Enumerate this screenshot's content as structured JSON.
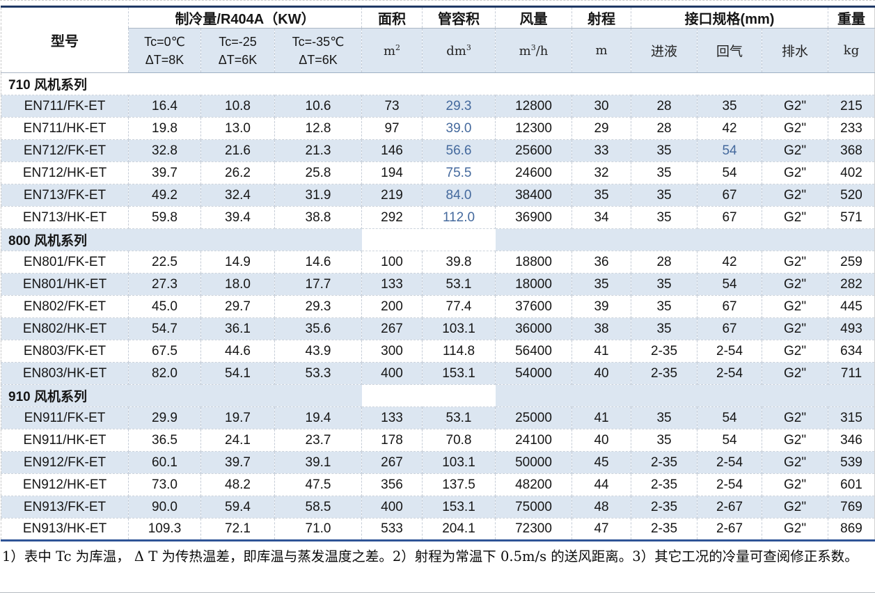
{
  "table": {
    "header": {
      "model": "型号",
      "cooling_group": "制冷量/R404A（KW）",
      "tc_conditions": [
        {
          "line1": "Tc=0℃",
          "line2": "ΔT=8K"
        },
        {
          "line1": "Tc=-25",
          "line2": "ΔT=6K"
        },
        {
          "line1": "Tc=-35℃",
          "line2": "ΔT=6K"
        }
      ],
      "area": "面积",
      "tube_volume": "管容积",
      "air_flow": "风量",
      "throw": "射程",
      "connections": "接口规格(mm)",
      "weight": "重量",
      "conn_liquid": "进液",
      "conn_gas": "回气",
      "conn_drain": "排水",
      "units": {
        "area": {
          "base": "m",
          "sup": "2"
        },
        "tube_volume": {
          "base": "dm",
          "sup": "3"
        },
        "air_flow": {
          "base": "m",
          "sup": "3",
          "suffix": "/h"
        },
        "throw": "m",
        "weight": "kg"
      }
    },
    "values_columns": [
      "制冷量 Tc=0℃ ΔT=8K (KW)",
      "制冷量 Tc=-25 ΔT=6K (KW)",
      "制冷量 Tc=-35℃ ΔT=6K (KW)",
      "面积 m²",
      "管容积 dm³",
      "风量 m³/h",
      "射程 m",
      "进液 (mm)",
      "回气 (mm)",
      "排水",
      "重量 kg"
    ],
    "sections": [
      {
        "title": "710 风机系列",
        "header_shaded": false,
        "white_cols": [],
        "first_row_shaded": true,
        "rows": [
          {
            "model": "EN711/FK-ET",
            "values": [
              "16.4",
              "10.8",
              "10.6",
              "73",
              "29.3",
              "12800",
              "30",
              "28",
              "35",
              "G2\"",
              "215"
            ],
            "blue": [
              4
            ]
          },
          {
            "model": "EN711/HK-ET",
            "values": [
              "19.8",
              "13.0",
              "12.8",
              "97",
              "39.0",
              "12300",
              "29",
              "28",
              "42",
              "G2\"",
              "233"
            ],
            "blue": [
              4
            ]
          },
          {
            "model": "EN712/FK-ET",
            "values": [
              "32.8",
              "21.6",
              "21.3",
              "146",
              "56.6",
              "25600",
              "33",
              "35",
              "54",
              "G2\"",
              "368"
            ],
            "blue": [
              4,
              8
            ]
          },
          {
            "model": "EN712/HK-ET",
            "values": [
              "39.7",
              "26.2",
              "25.8",
              "194",
              "75.5",
              "24600",
              "32",
              "35",
              "54",
              "G2\"",
              "402"
            ],
            "blue": [
              4
            ]
          },
          {
            "model": "EN713/FK-ET",
            "values": [
              "49.2",
              "32.4",
              "31.9",
              "219",
              "84.0",
              "38400",
              "35",
              "35",
              "67",
              "G2\"",
              "520"
            ],
            "blue": [
              4
            ]
          },
          {
            "model": "EN713/HK-ET",
            "values": [
              "59.8",
              "39.4",
              "38.8",
              "292",
              "112.0",
              "36900",
              "34",
              "35",
              "67",
              "G2\"",
              "571"
            ],
            "blue": [
              4
            ]
          }
        ]
      },
      {
        "title": "800 风机系列",
        "header_shaded": true,
        "white_cols": [
          4,
          5
        ],
        "first_row_shaded": false,
        "rows": [
          {
            "model": "EN801/FK-ET",
            "values": [
              "22.5",
              "14.9",
              "14.6",
              "100",
              "39.8",
              "18800",
              "36",
              "28",
              "42",
              "G2\"",
              "259"
            ],
            "blue": []
          },
          {
            "model": "EN801/HK-ET",
            "values": [
              "27.3",
              "18.0",
              "17.7",
              "133",
              "53.1",
              "18000",
              "35",
              "35",
              "54",
              "G2\"",
              "282"
            ],
            "blue": []
          },
          {
            "model": "EN802/FK-ET",
            "values": [
              "45.0",
              "29.7",
              "29.3",
              "200",
              "77.4",
              "37600",
              "39",
              "35",
              "67",
              "G2\"",
              "445"
            ],
            "blue": []
          },
          {
            "model": "EN802/HK-ET",
            "values": [
              "54.7",
              "36.1",
              "35.6",
              "267",
              "103.1",
              "36000",
              "38",
              "35",
              "67",
              "G2\"",
              "493"
            ],
            "blue": []
          },
          {
            "model": "EN803/FK-ET",
            "values": [
              "67.5",
              "44.6",
              "43.9",
              "300",
              "114.8",
              "56400",
              "41",
              "2-35",
              "2-54",
              "G2\"",
              "634"
            ],
            "blue": []
          },
          {
            "model": "EN803/HK-ET",
            "values": [
              "82.0",
              "54.1",
              "53.3",
              "400",
              "153.1",
              "54000",
              "40",
              "2-35",
              "2-54",
              "G2\"",
              "711"
            ],
            "blue": []
          }
        ]
      },
      {
        "title": "910 风机系列",
        "header_shaded": true,
        "white_cols": [
          4,
          5
        ],
        "first_row_shaded": true,
        "rows": [
          {
            "model": "EN911/FK-ET",
            "values": [
              "29.9",
              "19.7",
              "19.4",
              "133",
              "53.1",
              "25000",
              "41",
              "35",
              "54",
              "G2\"",
              "315"
            ],
            "blue": []
          },
          {
            "model": "EN911/HK-ET",
            "values": [
              "36.5",
              "24.1",
              "23.7",
              "178",
              "70.8",
              "24100",
              "40",
              "35",
              "54",
              "G2\"",
              "346"
            ],
            "blue": []
          },
          {
            "model": "EN912/FK-ET",
            "values": [
              "60.1",
              "39.7",
              "39.1",
              "267",
              "103.1",
              "50000",
              "45",
              "2-35",
              "2-54",
              "G2\"",
              "539"
            ],
            "blue": []
          },
          {
            "model": "EN912/HK-ET",
            "values": [
              "73.0",
              "48.2",
              "47.5",
              "356",
              "137.5",
              "48200",
              "44",
              "2-35",
              "2-54",
              "G2\"",
              "601"
            ],
            "blue": []
          },
          {
            "model": "EN913/FK-ET",
            "values": [
              "90.0",
              "59.4",
              "58.5",
              "400",
              "153.1",
              "75000",
              "48",
              "2-35",
              "2-67",
              "G2\"",
              "769"
            ],
            "blue": []
          },
          {
            "model": "EN913/HK-ET",
            "values": [
              "109.3",
              "72.1",
              "71.0",
              "533",
              "204.1",
              "72300",
              "47",
              "2-35",
              "2-67",
              "G2\"",
              "869"
            ],
            "blue": []
          }
        ]
      }
    ]
  },
  "colors": {
    "row_shade": "#dce6f1",
    "top_border": "#1f3864",
    "bottom_border": "#2f5496",
    "highlight_text": "#44699d"
  },
  "notes": "1）表中 Tc 为库温， Δ T 为传热温差，即库温与蒸发温度之差。2）射程为常温下 0.5m/s 的送风距离。3）其它工况的冷量可查阅修正系数。"
}
